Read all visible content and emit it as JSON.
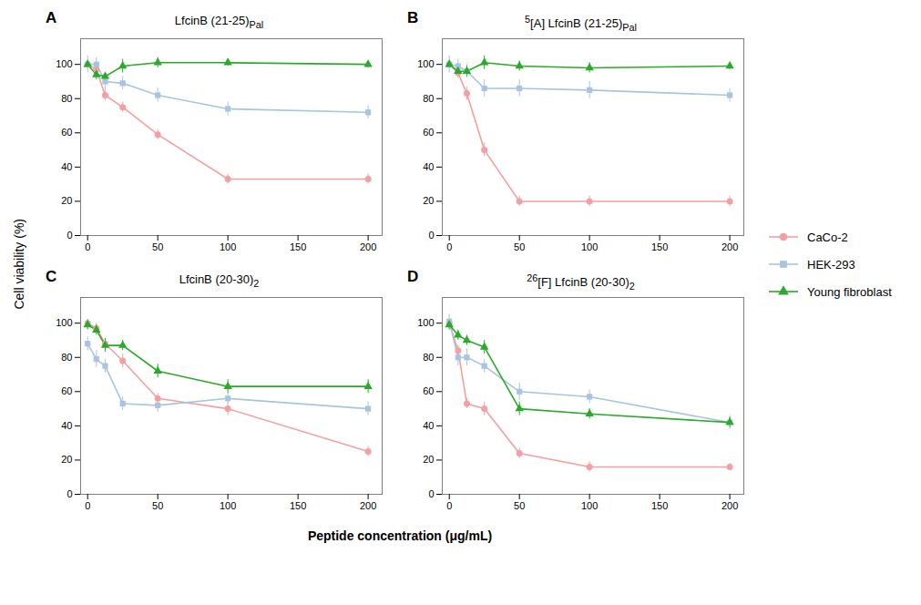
{
  "xlabel": "Peptide concentration (μg/mL)",
  "ylabel": "Cell viability (%)",
  "chart_data": [
    {
      "type": "line",
      "panel_label": "A",
      "title": "LfcinB (21-25)",
      "title_subscript": "Pal",
      "x": [
        0,
        6.25,
        12.5,
        25,
        50,
        100,
        200
      ],
      "xlim": [
        -5,
        210
      ],
      "xticks": [
        0,
        50,
        100,
        150,
        200
      ],
      "ylim": [
        0,
        115
      ],
      "yticks": [
        0,
        20,
        40,
        60,
        80,
        100
      ],
      "grid": false,
      "series": [
        {
          "name": "CaCo-2",
          "color": "#F4A0A0",
          "marker": "circle",
          "values": [
            100,
            97,
            82,
            75,
            59,
            33,
            33
          ],
          "errors": [
            2,
            3,
            3,
            3,
            3,
            3,
            3
          ]
        },
        {
          "name": "HEK-293",
          "color": "#A8C4E0",
          "marker": "square",
          "values": [
            100,
            100,
            90,
            89,
            82,
            74,
            72
          ],
          "errors": [
            5,
            4,
            5,
            4,
            4,
            4,
            4
          ]
        },
        {
          "name": "Young fibroblast",
          "color": "#2AAA2A",
          "marker": "triangle",
          "values": [
            100,
            94,
            93,
            99,
            101,
            101,
            100
          ],
          "errors": [
            2,
            3,
            2,
            4,
            3,
            2,
            2
          ]
        }
      ]
    },
    {
      "type": "line",
      "panel_label": "B",
      "title": "[A] LfcinB (21-25)",
      "title_superscript": "5",
      "title_subscript": "Pal",
      "x": [
        0,
        6.25,
        12.5,
        25,
        50,
        100,
        200
      ],
      "xlim": [
        -5,
        210
      ],
      "xticks": [
        0,
        50,
        100,
        150,
        200
      ],
      "ylim": [
        0,
        115
      ],
      "yticks": [
        0,
        20,
        40,
        60,
        80,
        100
      ],
      "grid": false,
      "series": [
        {
          "name": "CaCo-2",
          "color": "#F4A0A0",
          "marker": "circle",
          "values": [
            100,
            95,
            83,
            50,
            20,
            20,
            20
          ],
          "errors": [
            2,
            3,
            4,
            4,
            3,
            3,
            3
          ]
        },
        {
          "name": "HEK-293",
          "color": "#A8C4E0",
          "marker": "square",
          "values": [
            100,
            99,
            96,
            86,
            86,
            85,
            82
          ],
          "errors": [
            5,
            4,
            4,
            5,
            5,
            5,
            4
          ]
        },
        {
          "name": "Young fibroblast",
          "color": "#2AAA2A",
          "marker": "triangle",
          "values": [
            100,
            96,
            96,
            101,
            99,
            98,
            99
          ],
          "errors": [
            2,
            3,
            3,
            4,
            3,
            3,
            2
          ]
        }
      ]
    },
    {
      "type": "line",
      "panel_label": "C",
      "title": "LfcinB (20-30)",
      "title_subscript": "2",
      "x": [
        0,
        6.25,
        12.5,
        25,
        50,
        100,
        200
      ],
      "xlim": [
        -5,
        210
      ],
      "xticks": [
        0,
        50,
        100,
        150,
        200
      ],
      "ylim": [
        0,
        115
      ],
      "yticks": [
        0,
        20,
        40,
        60,
        80,
        100
      ],
      "grid": false,
      "series": [
        {
          "name": "CaCo-2",
          "color": "#F4A0A0",
          "marker": "circle",
          "values": [
            100,
            97,
            88,
            78,
            56,
            50,
            25
          ],
          "errors": [
            2,
            3,
            3,
            4,
            3,
            4,
            3
          ]
        },
        {
          "name": "HEK-293",
          "color": "#A8C4E0",
          "marker": "square",
          "values": [
            88,
            79,
            75,
            53,
            52,
            56,
            50
          ],
          "errors": [
            4,
            5,
            4,
            4,
            4,
            3,
            4
          ]
        },
        {
          "name": "Young fibroblast",
          "color": "#2AAA2A",
          "marker": "triangle",
          "values": [
            99,
            96,
            87,
            87,
            72,
            63,
            63
          ],
          "errors": [
            3,
            3,
            4,
            3,
            4,
            4,
            4
          ]
        }
      ]
    },
    {
      "type": "line",
      "panel_label": "D",
      "title": "[F] LfcinB (20-30)",
      "title_superscript": "26",
      "title_subscript": "2",
      "x": [
        0,
        6.25,
        12.5,
        25,
        50,
        100,
        200
      ],
      "xlim": [
        -5,
        210
      ],
      "xticks": [
        0,
        50,
        100,
        150,
        200
      ],
      "ylim": [
        0,
        115
      ],
      "yticks": [
        0,
        20,
        40,
        60,
        80,
        100
      ],
      "grid": false,
      "series": [
        {
          "name": "CaCo-2",
          "color": "#F4A0A0",
          "marker": "circle",
          "values": [
            100,
            84,
            53,
            50,
            24,
            16,
            16
          ],
          "errors": [
            2,
            3,
            3,
            4,
            3,
            3,
            2
          ]
        },
        {
          "name": "HEK-293",
          "color": "#A8C4E0",
          "marker": "square",
          "values": [
            101,
            80,
            80,
            75,
            60,
            57,
            42
          ],
          "errors": [
            4,
            5,
            5,
            4,
            5,
            4,
            4
          ]
        },
        {
          "name": "Young fibroblast",
          "color": "#2AAA2A",
          "marker": "triangle",
          "values": [
            99,
            93,
            90,
            86,
            50,
            47,
            42
          ],
          "errors": [
            3,
            3,
            3,
            4,
            4,
            3,
            3
          ]
        }
      ]
    }
  ]
}
